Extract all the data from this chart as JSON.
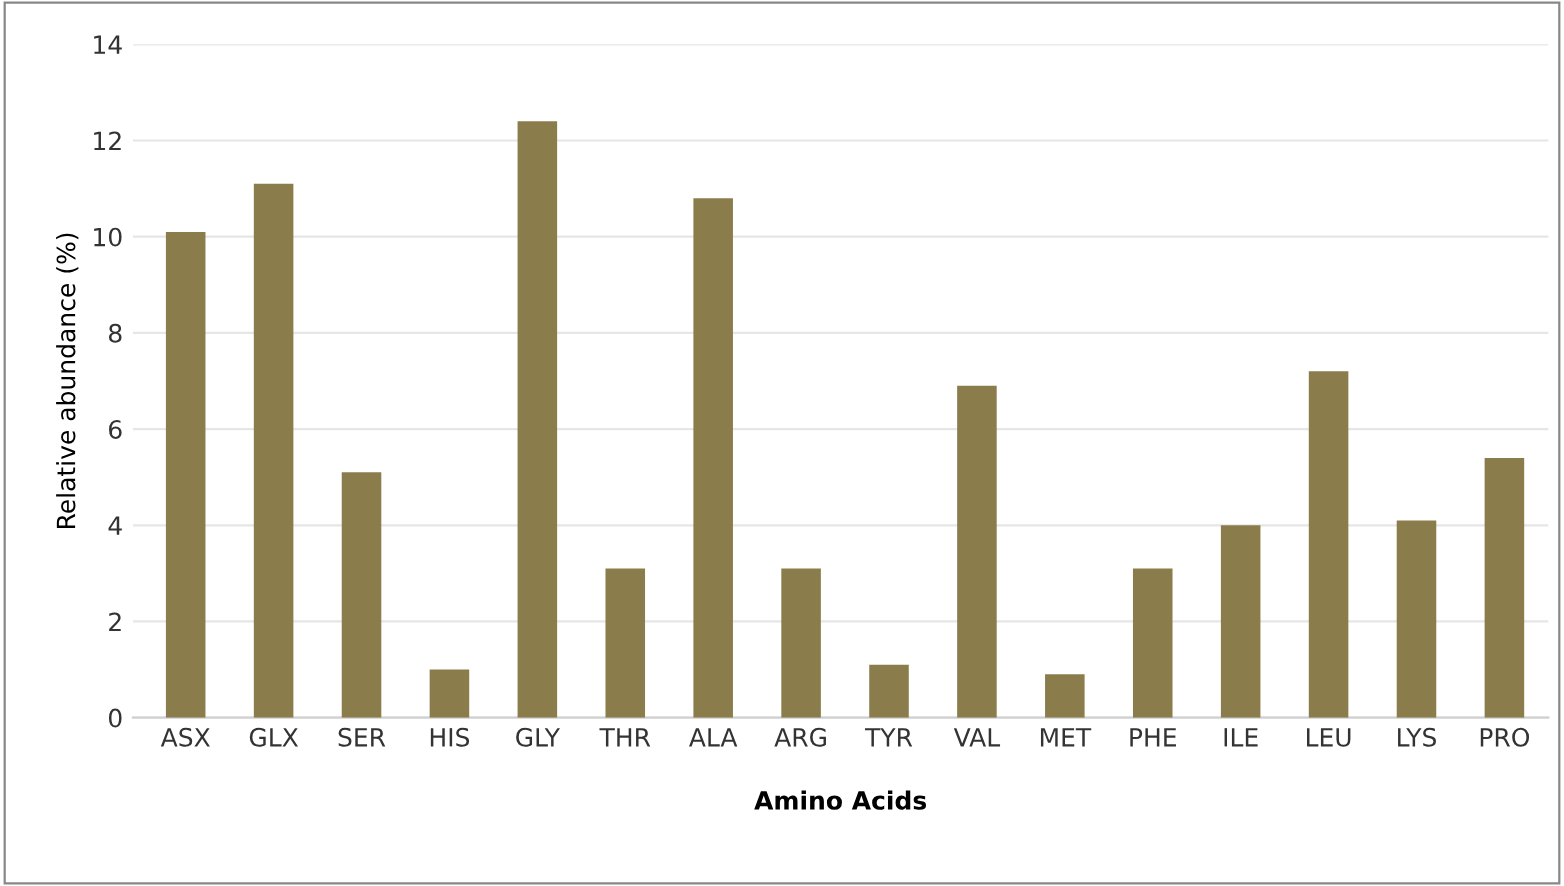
{
  "chart_data": {
    "type": "bar",
    "xlabel": "Amino Acids",
    "ylabel": "Relative abundance (%)",
    "categories": [
      "ASX",
      "GLX",
      "SER",
      "HIS",
      "GLY",
      "THR",
      "ALA",
      "ARG",
      "TYR",
      "VAL",
      "MET",
      "PHE",
      "ILE",
      "LEU",
      "LYS",
      "PRO"
    ],
    "values": [
      10.1,
      11.1,
      5.1,
      1.0,
      12.4,
      3.1,
      10.8,
      3.1,
      1.1,
      6.9,
      0.9,
      3.1,
      4.0,
      7.2,
      4.1,
      5.4
    ],
    "color": "#8b7d4b",
    "ylim": [
      0,
      14
    ],
    "yticks": [
      0,
      2,
      4,
      6,
      8,
      10,
      12,
      14
    ],
    "grid": "y"
  }
}
